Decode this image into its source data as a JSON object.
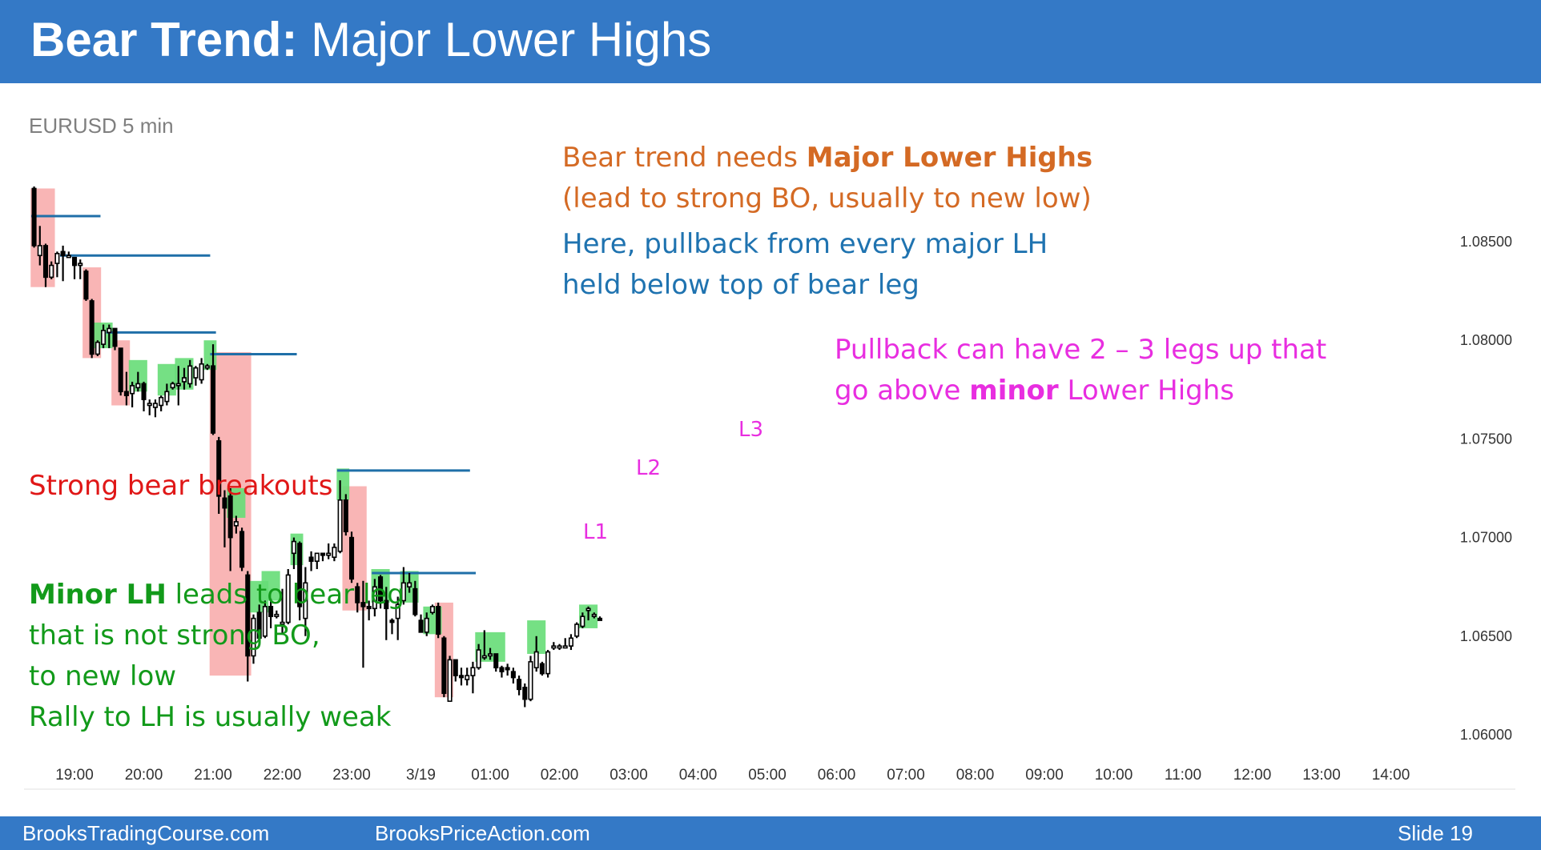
{
  "header": {
    "title_bold": "Bear Trend:",
    "title_rest": " Major Lower Highs"
  },
  "symbol": "EURUSD 5 min",
  "notes": {
    "orange_line1_pre": "Bear trend needs ",
    "orange_line1_bold": "Major Lower Highs",
    "orange_line2": "(lead to strong BO, usually to new low)",
    "blue_line1": "Here, pullback from every major LH",
    "blue_line2": "held below top of bear leg",
    "magenta_line1": "Pullback can have 2 – 3 legs up that",
    "magenta_line2_pre": "go above ",
    "magenta_line2_bold": "minor",
    "magenta_line2_post": " Lower Highs",
    "red_line1": "Strong bear breakouts",
    "green_line1_bold": "Minor LH",
    "green_line1_rest": " leads to bear leg",
    "green_line2": "that is not strong BO,",
    "green_line3": "to new low",
    "green_line4": "Rally to LH is usually weak"
  },
  "labels": {
    "l1": "L1",
    "l2": "L2",
    "l3": "L3"
  },
  "footer": {
    "left": "BrooksTradingCourse.com",
    "center": "BrooksPriceAction.com",
    "right": "Slide  19"
  },
  "colors": {
    "header_bg": "#3479c6",
    "bull_box": "#66dd77",
    "bear_box": "#f8a8a8",
    "line_blue": "#1f6fa8",
    "candle": "#000000"
  },
  "chart_data": {
    "type": "candlestick",
    "ylim": [
      1.0595,
      1.0875
    ],
    "y_ticks": [
      "1.08500",
      "1.08000",
      "1.07500",
      "1.07000",
      "1.06500",
      "1.06000"
    ],
    "y_tick_values": [
      1.085,
      1.08,
      1.075,
      1.07,
      1.065,
      1.06
    ],
    "x_ticks": [
      "19:00",
      "20:00",
      "21:00",
      "22:00",
      "23:00",
      "3/19",
      "01:00",
      "02:00",
      "03:00",
      "04:00",
      "05:00",
      "06:00",
      "07:00",
      "08:00",
      "09:00",
      "10:00",
      "11:00",
      "12:00",
      "13:00",
      "14:00"
    ],
    "first_bar_hour": 18.417,
    "bars_per_hour": 12,
    "candles": [
      [
        1.0877,
        1.0878,
        1.0847,
        1.0848
      ],
      [
        1.0843,
        1.0858,
        1.0838,
        1.0848
      ],
      [
        1.0848,
        1.0849,
        1.0827,
        1.0832
      ],
      [
        1.0832,
        1.084,
        1.0831,
        1.0838
      ],
      [
        1.0839,
        1.0845,
        1.0832,
        1.0844
      ],
      [
        1.0845,
        1.0848,
        1.083,
        1.0843
      ],
      [
        1.0843,
        1.0845,
        1.0842,
        1.0843
      ],
      [
        1.0842,
        1.0842,
        1.0831,
        1.0838
      ],
      [
        1.0838,
        1.0841,
        1.0831,
        1.0839
      ],
      [
        1.0835,
        1.0836,
        1.082,
        1.0821
      ],
      [
        1.082,
        1.0821,
        1.0791,
        1.0793
      ],
      [
        1.0793,
        1.08,
        1.0792,
        1.0799
      ],
      [
        1.0798,
        1.0808,
        1.0796,
        1.0805
      ],
      [
        1.0804,
        1.0808,
        1.0796,
        1.0806
      ],
      [
        1.0806,
        1.0806,
        1.0795,
        1.0797
      ],
      [
        1.0796,
        1.0796,
        1.0772,
        1.0774
      ],
      [
        1.0774,
        1.0784,
        1.0767,
        1.0772
      ],
      [
        1.0773,
        1.0779,
        1.0766,
        1.0777
      ],
      [
        1.0776,
        1.0784,
        1.0774,
        1.0778
      ],
      [
        1.0778,
        1.0779,
        1.0764,
        1.077
      ],
      [
        1.0767,
        1.077,
        1.0762,
        1.0768
      ],
      [
        1.0766,
        1.077,
        1.0761,
        1.0768
      ],
      [
        1.0767,
        1.0772,
        1.0764,
        1.0771
      ],
      [
        1.0769,
        1.0778,
        1.0767,
        1.0774
      ],
      [
        1.0776,
        1.0779,
        1.0775,
        1.0778
      ],
      [
        1.0778,
        1.0787,
        1.0767,
        1.0778
      ],
      [
        1.0779,
        1.0786,
        1.0775,
        1.0781
      ],
      [
        1.0778,
        1.079,
        1.0776,
        1.0787
      ],
      [
        1.0781,
        1.0787,
        1.0777,
        1.0786
      ],
      [
        1.078,
        1.0791,
        1.0778,
        1.0788
      ],
      [
        1.0786,
        1.0788,
        1.0785,
        1.0787
      ],
      [
        1.0787,
        1.0798,
        1.0752,
        1.0753
      ],
      [
        1.0749,
        1.0751,
        1.0712,
        1.0721
      ],
      [
        1.072,
        1.0724,
        1.0695,
        1.0715
      ],
      [
        1.0721,
        1.0725,
        1.0683,
        1.07
      ],
      [
        1.0706,
        1.0711,
        1.0702,
        1.0708
      ],
      [
        1.0703,
        1.0705,
        1.0683,
        1.0685
      ],
      [
        1.0681,
        1.0683,
        1.0627,
        1.064
      ],
      [
        1.064,
        1.0661,
        1.0636,
        1.0659
      ],
      [
        1.0662,
        1.0666,
        1.0647,
        1.0649
      ],
      [
        1.065,
        1.0668,
        1.0649,
        1.0665
      ],
      [
        1.0665,
        1.0669,
        1.0654,
        1.066
      ],
      [
        1.066,
        1.0663,
        1.0659,
        1.0661
      ],
      [
        1.0657,
        1.0674,
        1.0651,
        1.0657
      ],
      [
        1.0657,
        1.0684,
        1.0656,
        1.0681
      ],
      [
        1.0692,
        1.07,
        1.0684,
        1.0698
      ],
      [
        1.0697,
        1.0698,
        1.0658,
        1.0665
      ],
      [
        1.0659,
        1.0685,
        1.065,
        1.0677
      ],
      [
        1.069,
        1.0693,
        1.0683,
        1.0688
      ],
      [
        1.0688,
        1.0692,
        1.0684,
        1.0692
      ],
      [
        1.0692,
        1.0692,
        1.0688,
        1.0691
      ],
      [
        1.0691,
        1.0697,
        1.0689,
        1.0692
      ],
      [
        1.069,
        1.0697,
        1.0688,
        1.0695
      ],
      [
        1.0693,
        1.0729,
        1.0692,
        1.0719
      ],
      [
        1.0719,
        1.0722,
        1.0701,
        1.0703
      ],
      [
        1.07,
        1.0703,
        1.0677,
        1.0679
      ],
      [
        1.0675,
        1.0677,
        1.0662,
        1.0667
      ],
      [
        1.0667,
        1.0678,
        1.0634,
        1.0665
      ],
      [
        1.0665,
        1.0668,
        1.0658,
        1.0664
      ],
      [
        1.0664,
        1.0679,
        1.066,
        1.0675
      ],
      [
        1.068,
        1.0681,
        1.0664,
        1.0668
      ],
      [
        1.0668,
        1.0675,
        1.0648,
        1.0664
      ],
      [
        1.0658,
        1.0659,
        1.0651,
        1.0657
      ],
      [
        1.0659,
        1.067,
        1.0648,
        1.0666
      ],
      [
        1.0668,
        1.0685,
        1.0666,
        1.0677
      ],
      [
        1.0675,
        1.0682,
        1.0672,
        1.0677
      ],
      [
        1.0674,
        1.0678,
        1.066,
        1.0661
      ],
      [
        1.0658,
        1.0661,
        1.0654,
        1.0652
      ],
      [
        1.0652,
        1.0662,
        1.065,
        1.0659
      ],
      [
        1.0662,
        1.0666,
        1.0661,
        1.0665
      ],
      [
        1.0665,
        1.0667,
        1.0649,
        1.0651
      ],
      [
        1.0649,
        1.065,
        1.0619,
        1.0621
      ],
      [
        1.0617,
        1.064,
        1.0617,
        1.0638
      ],
      [
        1.0638,
        1.0638,
        1.0627,
        1.063
      ],
      [
        1.063,
        1.0634,
        1.0625,
        1.0629
      ],
      [
        1.0628,
        1.0634,
        1.0625,
        1.063
      ],
      [
        1.063,
        1.0637,
        1.0621,
        1.0634
      ],
      [
        1.0634,
        1.0646,
        1.0633,
        1.0643
      ],
      [
        1.064,
        1.0653,
        1.0638,
        1.064
      ],
      [
        1.064,
        1.0644,
        1.0638,
        1.0641
      ],
      [
        1.0641,
        1.0641,
        1.0632,
        1.0634
      ],
      [
        1.0634,
        1.0635,
        1.0629,
        1.0632
      ],
      [
        1.0634,
        1.0636,
        1.063,
        1.0633
      ],
      [
        1.0632,
        1.0634,
        1.0626,
        1.0629
      ],
      [
        1.0628,
        1.063,
        1.062,
        1.0623
      ],
      [
        1.0624,
        1.0626,
        1.0614,
        1.0618
      ],
      [
        1.0618,
        1.064,
        1.0617,
        1.0637
      ],
      [
        1.0634,
        1.065,
        1.0632,
        1.0642
      ],
      [
        1.0636,
        1.0637,
        1.063,
        1.0631
      ],
      [
        1.0631,
        1.0643,
        1.0629,
        1.0642
      ],
      [
        1.0645,
        1.0647,
        1.0643,
        1.0645
      ],
      [
        1.0644,
        1.0646,
        1.0643,
        1.0645
      ],
      [
        1.0645,
        1.0649,
        1.0644,
        1.0645
      ],
      [
        1.0645,
        1.0651,
        1.0643,
        1.0649
      ],
      [
        1.065,
        1.0657,
        1.0649,
        1.0656
      ],
      [
        1.0655,
        1.0662,
        1.0654,
        1.066
      ],
      [
        1.0663,
        1.0665,
        1.0658,
        1.0664
      ],
      [
        1.066,
        1.0662,
        1.0659,
        1.0661
      ],
      [
        1.0659,
        1.066,
        1.0658,
        1.0658
      ]
    ],
    "major_lower_highs": [
      {
        "price": 1.0863,
        "from_bar": 0,
        "to_bar": 11
      },
      {
        "price": 1.0843,
        "from_bar": 5,
        "to_bar": 30
      },
      {
        "price": 1.0804,
        "from_bar": 13,
        "to_bar": 31
      },
      {
        "price": 1.0793,
        "from_bar": 31,
        "to_bar": 45
      },
      {
        "price": 1.0734,
        "from_bar": 53,
        "to_bar": 75
      },
      {
        "price": 1.0682,
        "from_bar": 59,
        "to_bar": 76
      }
    ],
    "bull_boxes": [
      {
        "from_bar": 11,
        "to_bar": 13,
        "low": 1.0796,
        "high": 1.0809
      },
      {
        "from_bar": 17,
        "to_bar": 19,
        "low": 1.0774,
        "high": 1.079
      },
      {
        "from_bar": 22,
        "to_bar": 24,
        "low": 1.0772,
        "high": 1.0788
      },
      {
        "from_bar": 25,
        "to_bar": 27,
        "low": 1.0775,
        "high": 1.0791
      },
      {
        "from_bar": 30,
        "to_bar": 31,
        "low": 1.0785,
        "high": 1.08
      },
      {
        "from_bar": 34,
        "to_bar": 36,
        "low": 1.071,
        "high": 1.0725
      },
      {
        "from_bar": 38,
        "to_bar": 40,
        "low": 1.0662,
        "high": 1.0678
      },
      {
        "from_bar": 40,
        "to_bar": 42,
        "low": 1.0668,
        "high": 1.0683
      },
      {
        "from_bar": 45,
        "to_bar": 46,
        "low": 1.0686,
        "high": 1.0702
      },
      {
        "from_bar": 53,
        "to_bar": 54,
        "low": 1.0719,
        "high": 1.0735
      },
      {
        "from_bar": 59,
        "to_bar": 61,
        "low": 1.0667,
        "high": 1.0684
      },
      {
        "from_bar": 64,
        "to_bar": 66,
        "low": 1.0667,
        "high": 1.0683
      },
      {
        "from_bar": 68,
        "to_bar": 70,
        "low": 1.0651,
        "high": 1.0665
      },
      {
        "from_bar": 77,
        "to_bar": 81,
        "low": 1.0637,
        "high": 1.0652
      },
      {
        "from_bar": 86,
        "to_bar": 88,
        "low": 1.0641,
        "high": 1.0658
      },
      {
        "from_bar": 95,
        "to_bar": 97,
        "low": 1.0654,
        "high": 1.0666
      }
    ],
    "bear_boxes": [
      {
        "from_bar": 0,
        "to_bar": 3,
        "low": 1.0827,
        "high": 1.0877
      },
      {
        "from_bar": 9,
        "to_bar": 11,
        "low": 1.0791,
        "high": 1.0837
      },
      {
        "from_bar": 14,
        "to_bar": 16,
        "low": 1.0767,
        "high": 1.08
      },
      {
        "from_bar": 31,
        "to_bar": 37,
        "low": 1.063,
        "high": 1.0794
      },
      {
        "from_bar": 54,
        "to_bar": 57,
        "low": 1.0663,
        "high": 1.0726
      },
      {
        "from_bar": 70,
        "to_bar": 72,
        "low": 1.0619,
        "high": 1.0667
      }
    ],
    "lh_labels": [
      {
        "name": "L1",
        "bar": 41,
        "price": 1.0695
      },
      {
        "name": "L2",
        "bar": 46,
        "price": 1.0727
      },
      {
        "name": "L3",
        "bar": 53,
        "price": 1.0758
      }
    ]
  }
}
